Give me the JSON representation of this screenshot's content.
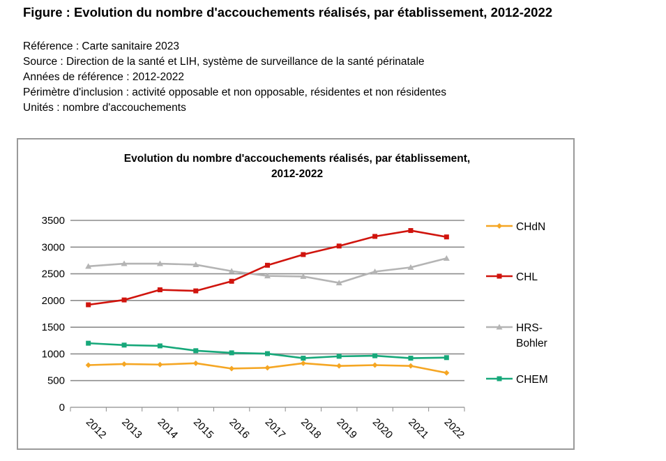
{
  "figure_title": "Figure : Evolution du nombre d'accouchements réalisés, par établissement, 2012-2022",
  "meta": [
    "Référence : Carte sanitaire 2023",
    "Source : Direction de la santé et LIH, système de surveillance de la santé périnatale",
    "Années de référence : 2012-2022",
    "Périmètre d'inclusion : activité opposable et non opposable, résidentes et non résidentes",
    "Unités : nombre d'accouchements"
  ],
  "chart_data": {
    "type": "line",
    "title_lines": [
      "Evolution du nombre d'accouchements réalisés, par établissement,",
      "2012-2022"
    ],
    "xlabel": "",
    "ylabel": "",
    "categories": [
      "2012",
      "2013",
      "2014",
      "2015",
      "2016",
      "2017",
      "2018",
      "2019",
      "2020",
      "2021",
      "2022"
    ],
    "ylim": [
      0,
      3500
    ],
    "yticks": [
      "0",
      "500",
      "1000",
      "1500",
      "2000",
      "2500",
      "3000",
      "3500"
    ],
    "grid": true,
    "legend_position": "right",
    "series": [
      {
        "name_lines": [
          "CHdN"
        ],
        "color": "#f5a623",
        "marker": "diamond",
        "values": [
          790,
          810,
          800,
          825,
          725,
          740,
          825,
          775,
          790,
          775,
          645
        ]
      },
      {
        "name_lines": [
          "CHL"
        ],
        "color": "#d0140d",
        "marker": "square",
        "values": [
          1920,
          2010,
          2200,
          2180,
          2360,
          2660,
          2860,
          3020,
          3200,
          3310,
          3190
        ]
      },
      {
        "name_lines": [
          "HRS-",
          "Bohler"
        ],
        "color": "#b4b4b4",
        "marker": "triangle",
        "values": [
          2640,
          2690,
          2690,
          2670,
          2550,
          2460,
          2450,
          2330,
          2540,
          2620,
          2790
        ]
      },
      {
        "name_lines": [
          "CHEM"
        ],
        "color": "#17a87a",
        "marker": "square",
        "values": [
          1200,
          1165,
          1150,
          1060,
          1020,
          1005,
          920,
          955,
          965,
          920,
          930
        ]
      }
    ]
  }
}
